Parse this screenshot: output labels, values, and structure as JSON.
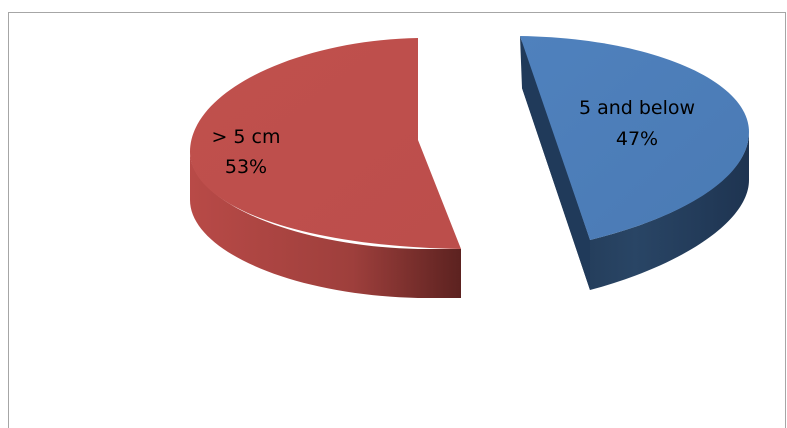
{
  "chart_data": {
    "type": "pie",
    "style": "3d-exploded",
    "slices": [
      {
        "label": "5 and below",
        "percent_label": "47%",
        "value": 47,
        "color": "#4f81bd"
      },
      {
        "label": "> 5 cm",
        "percent_label": "53%",
        "value": 53,
        "color": "#c0504d"
      }
    ],
    "title": "",
    "legend": "none"
  }
}
